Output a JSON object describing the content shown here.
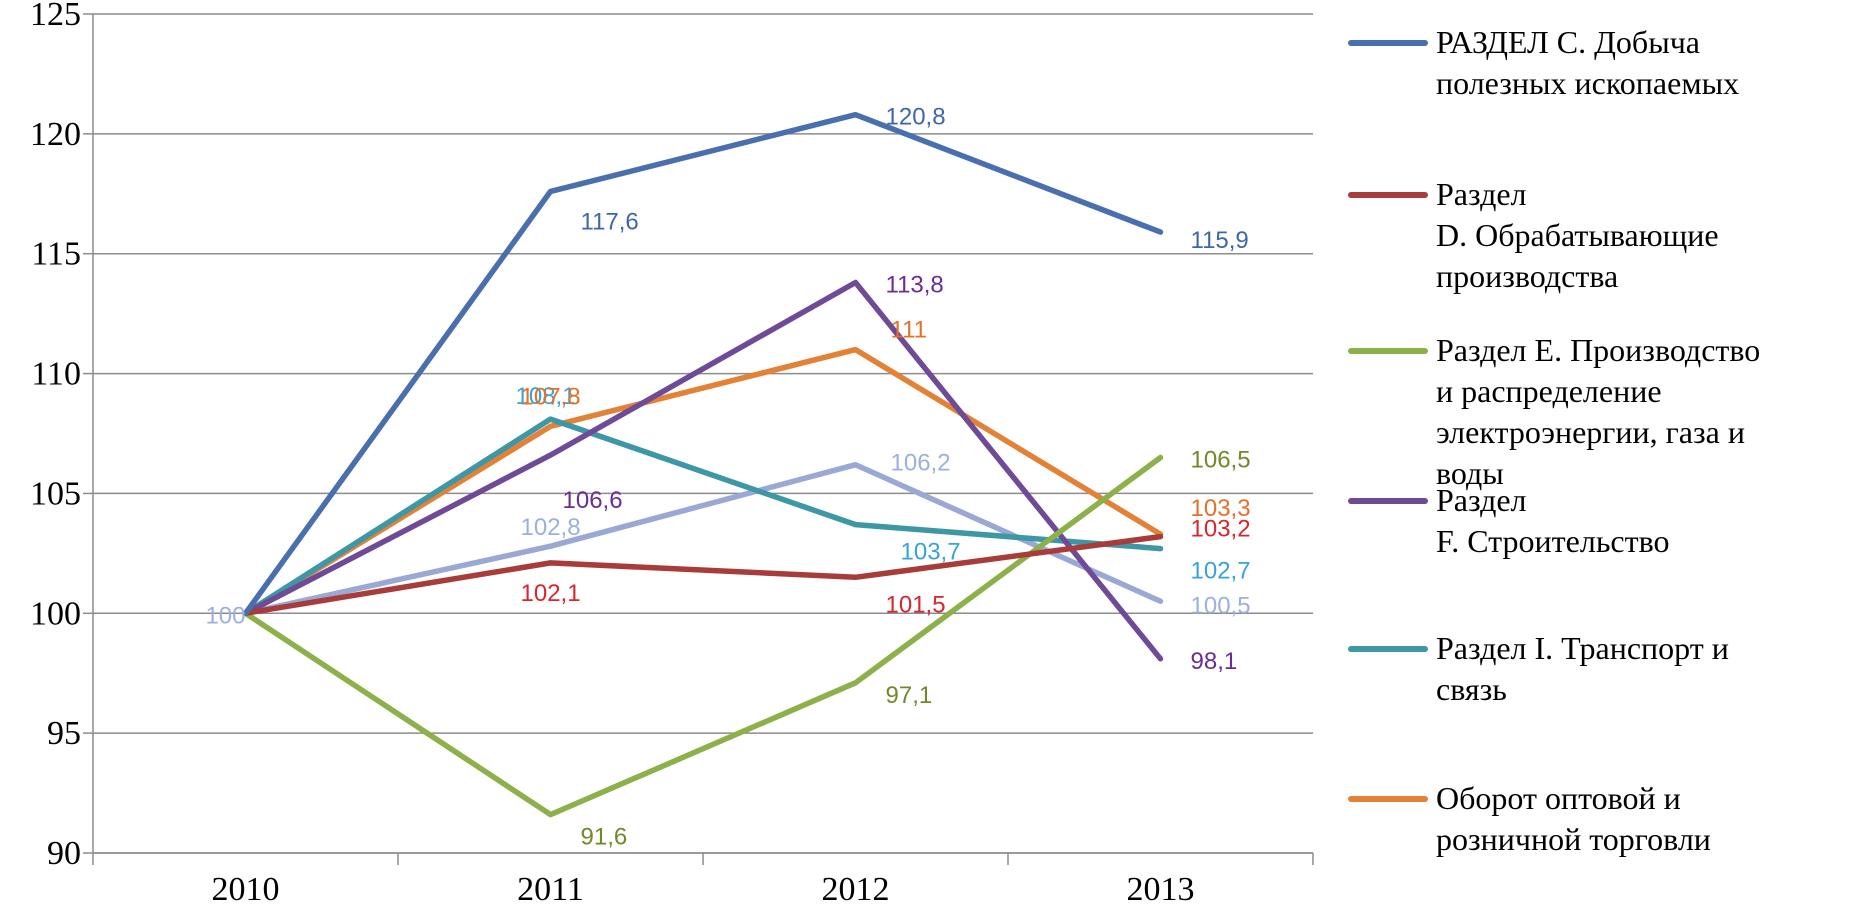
{
  "chart_data": {
    "type": "line",
    "categories": [
      "2010",
      "2011",
      "2012",
      "2013"
    ],
    "ylim": [
      90,
      125
    ],
    "yticks": [
      "90",
      "95",
      "100",
      "105",
      "110",
      "115",
      "120",
      "125"
    ],
    "grid": true,
    "legend_position": "right",
    "series": [
      {
        "name": "РАЗДЕЛ С.  Добыча полезных ископаемых",
        "color": "#4a6fae",
        "values": [
          100,
          117.6,
          120.8,
          115.9
        ],
        "labels": [
          "",
          "117,6",
          "120,8",
          "115,9"
        ],
        "label_color": "#3f65ad"
      },
      {
        "name": "Раздел D.  Обрабатывающие производства",
        "color": "#a83c3a",
        "values": [
          100,
          102.1,
          101.5,
          103.2
        ],
        "labels": [
          "",
          "102,1",
          "101,5",
          "103,2"
        ],
        "label_color": "#d8262e"
      },
      {
        "name": "Раздел Е.  Производство и распределение электроэнергии, газа и воды",
        "color": "#8cb04a",
        "values": [
          100,
          91.6,
          97.1,
          106.5
        ],
        "labels": [
          "",
          "91,6",
          "97,1",
          "106,5"
        ],
        "label_color": "#6e8a2a"
      },
      {
        "name": "Раздел F.  Строительство",
        "color": "#6f4a96",
        "values": [
          100,
          106.6,
          113.8,
          98.1
        ],
        "labels": [
          "",
          "106,6",
          "113,8",
          "98,1"
        ],
        "label_color": "#6a2d96"
      },
      {
        "name": "Раздел I.  Транспорт и связь",
        "color": "#3d97a6",
        "values": [
          100,
          108.1,
          103.7,
          102.7
        ],
        "labels": [
          "",
          "108,1",
          "103,7",
          "102,7"
        ],
        "label_color": "#36a3d9"
      },
      {
        "name": "Оборот оптовой и розничной торговли",
        "color": "#e38236",
        "values": [
          100,
          107.8,
          111,
          103.3
        ],
        "labels": [
          "",
          "107,8",
          "111",
          "103,3"
        ],
        "label_color": "#e4702c"
      },
      {
        "name": "",
        "color": "#9aa8d4",
        "values": [
          100,
          102.8,
          106.2,
          100.5
        ],
        "labels": [
          "100",
          "102,8",
          "106,2",
          "100,5"
        ],
        "label_color": "#9bb0e0"
      }
    ]
  },
  "legend": {
    "items": [
      {
        "lines": [
          "РАЗДЕЛ С.  Добыча",
          "полезных ископаемых"
        ],
        "color": "#4a6fae"
      },
      {
        "lines": [
          "Раздел",
          "D.  Обрабатывающие",
          "производства"
        ],
        "color": "#a83c3a"
      },
      {
        "lines": [
          "Раздел Е.  Производство",
          "и распределение",
          "электроэнергии, газа и",
          "воды"
        ],
        "color": "#8cb04a"
      },
      {
        "lines": [
          "Раздел",
          "F.  Строительство"
        ],
        "color": "#6f4a96"
      },
      {
        "lines": [
          "Раздел I.  Транспорт и",
          "связь"
        ],
        "color": "#3d97a6"
      },
      {
        "lines": [
          "Оборот оптовой и",
          "розничной торговли"
        ],
        "color": "#e38236"
      }
    ]
  }
}
